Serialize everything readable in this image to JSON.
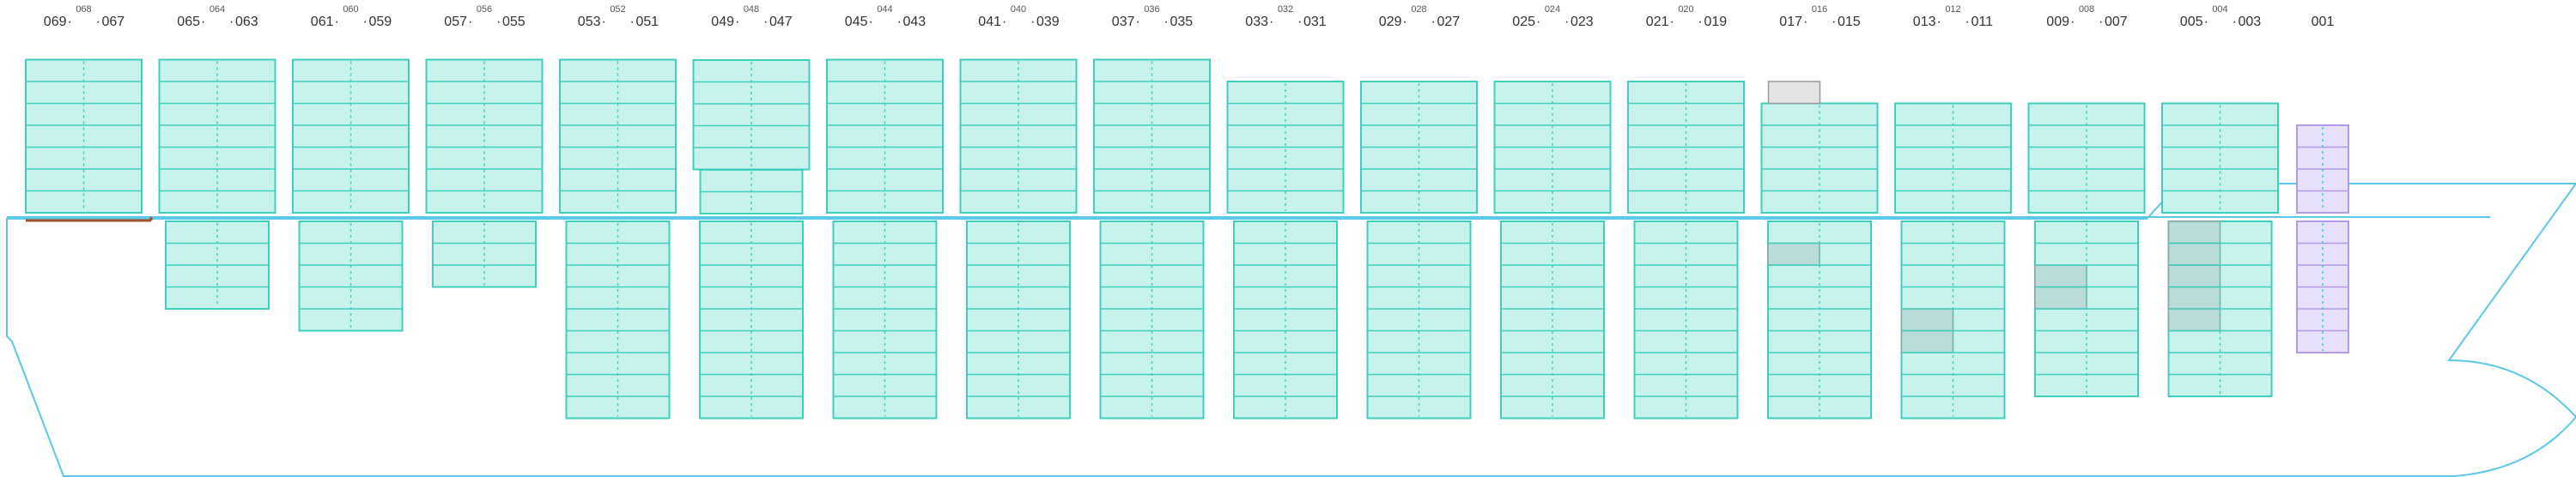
{
  "colors": {
    "hull_stroke": "#5bc8e8",
    "deck_stroke": "#a0522d",
    "slot_fill": "#c8f2ec",
    "slot_stroke": "#3fcfbf",
    "slot_divider": "#3fcfbf",
    "occupied_fill": "#b9dcd8",
    "occupied_stroke": "#8aa9a6",
    "empty_fill": "#e4e4e4",
    "empty_stroke": "#9a9a9a",
    "special_fill": "#e6e0fb",
    "special_stroke": "#b49ae6",
    "label": "#333333"
  },
  "bays": [
    {
      "left": "069",
      "right": "067",
      "middle": "068"
    },
    {
      "left": "065",
      "right": "063",
      "middle": "064"
    },
    {
      "left": "061",
      "right": "059",
      "middle": "060"
    },
    {
      "left": "057",
      "right": "055",
      "middle": "056"
    },
    {
      "left": "053",
      "right": "051",
      "middle": "052"
    },
    {
      "left": "049",
      "right": "047",
      "middle": "048"
    },
    {
      "left": "045",
      "right": "043",
      "middle": "044"
    },
    {
      "left": "041",
      "right": "039",
      "middle": "040"
    },
    {
      "left": "037",
      "right": "035",
      "middle": "036"
    },
    {
      "left": "033",
      "right": "031",
      "middle": "032"
    },
    {
      "left": "029",
      "right": "027",
      "middle": "028"
    },
    {
      "left": "025",
      "right": "023",
      "middle": "024"
    },
    {
      "left": "021",
      "right": "019",
      "middle": "020"
    },
    {
      "left": "017",
      "right": "015",
      "middle": "016"
    },
    {
      "left": "013",
      "right": "011",
      "middle": "012"
    },
    {
      "left": "009",
      "right": "007",
      "middle": "008"
    },
    {
      "left": "005",
      "right": "003",
      "middle": "004"
    },
    {
      "single": "001"
    }
  ],
  "deck_tiers": [
    7,
    7,
    7,
    7,
    7,
    6,
    7,
    7,
    7,
    6,
    6,
    6,
    6,
    5,
    5,
    5,
    5,
    4
  ],
  "hold_tiers": [
    0,
    4,
    5,
    3,
    9,
    9,
    9,
    9,
    9,
    9,
    9,
    9,
    9,
    9,
    9,
    8,
    8,
    6
  ],
  "bay_states": {
    "bay_048_raised": true,
    "bay_016_empty_top": true,
    "occupied": [
      {
        "bay": 13,
        "part": "hold",
        "row": 1,
        "side": "left"
      },
      {
        "bay": 14,
        "part": "hold",
        "row": 4,
        "side": "left"
      },
      {
        "bay": 14,
        "part": "hold",
        "row": 5,
        "side": "left"
      },
      {
        "bay": 15,
        "part": "hold",
        "row": 2,
        "side": "left"
      },
      {
        "bay": 15,
        "part": "hold",
        "row": 3,
        "side": "left"
      },
      {
        "bay": 16,
        "part": "hold",
        "row": 0,
        "side": "left"
      },
      {
        "bay": 16,
        "part": "hold",
        "row": 1,
        "side": "left"
      },
      {
        "bay": 16,
        "part": "hold",
        "row": 2,
        "side": "left"
      },
      {
        "bay": 16,
        "part": "hold",
        "row": 3,
        "side": "left"
      },
      {
        "bay": 16,
        "part": "hold",
        "row": 4,
        "side": "left"
      }
    ]
  }
}
